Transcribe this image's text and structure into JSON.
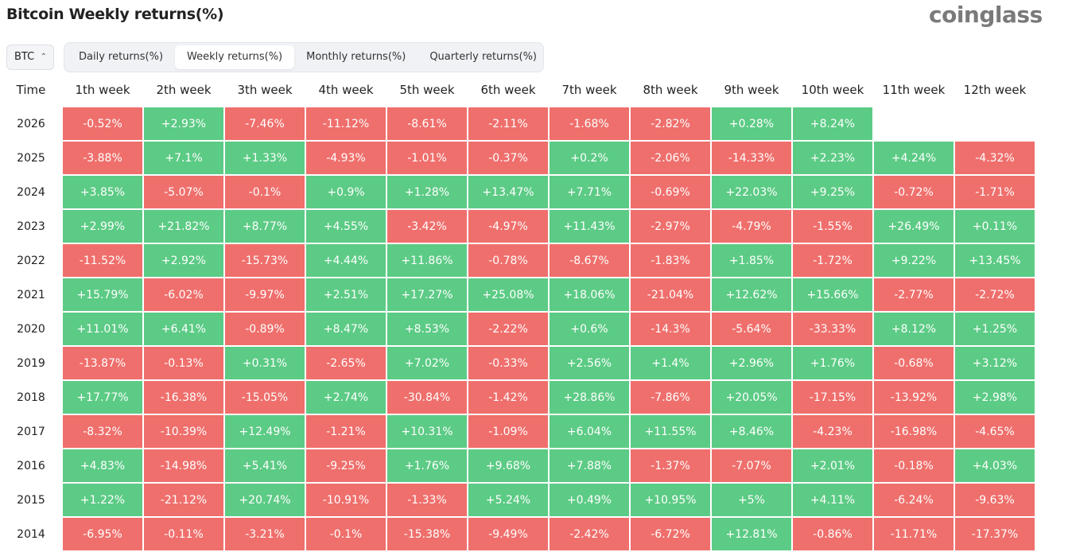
{
  "header": {
    "title": "Bitcoin Weekly returns(%)",
    "logo": "coinglass"
  },
  "selector": "BTC",
  "tabs": [
    "Daily returns(%)",
    "Weekly returns(%)",
    "Monthly returns(%)",
    "Quarterly returns(%)"
  ],
  "active_tab": 1,
  "table": {
    "columns": [
      "Time",
      "1th week",
      "2th week",
      "3th week",
      "4th week",
      "5th week",
      "6th week",
      "7th week",
      "8th week",
      "9th week",
      "10th week",
      "11th week",
      "12th week"
    ],
    "rows": [
      [
        "2026",
        "-0.52%",
        "+2.93%",
        "-7.46%",
        "-11.12%",
        "-8.61%",
        "-2.11%",
        "-1.68%",
        "-2.82%",
        "+0.28%",
        "+8.24%"
      ],
      [
        "2025",
        "-3.88%",
        "+7.1%",
        "+1.33%",
        "-4.93%",
        "-1.01%",
        "-0.37%",
        "+0.2%",
        "-2.06%",
        "-14.33%",
        "+2.23%",
        "+4.24%",
        "-4.32%"
      ],
      [
        "2024",
        "+3.85%",
        "-5.07%",
        "-0.1%",
        "+0.9%",
        "+1.28%",
        "+13.47%",
        "+7.71%",
        "-0.69%",
        "+22.03%",
        "+9.25%",
        "-0.72%",
        "-1.71%"
      ],
      [
        "2023",
        "+2.99%",
        "+21.82%",
        "+8.77%",
        "+4.55%",
        "-3.42%",
        "-4.97%",
        "+11.43%",
        "-2.97%",
        "-4.79%",
        "-1.55%",
        "+26.49%",
        "+0.11%"
      ],
      [
        "2022",
        "-11.52%",
        "+2.92%",
        "-15.73%",
        "+4.44%",
        "+11.86%",
        "-0.78%",
        "-8.67%",
        "-1.83%",
        "+1.85%",
        "-1.72%",
        "+9.22%",
        "+13.45%"
      ],
      [
        "2021",
        "+15.79%",
        "-6.02%",
        "-9.97%",
        "+2.51%",
        "+17.27%",
        "+25.08%",
        "+18.06%",
        "-21.04%",
        "+12.62%",
        "+15.66%",
        "-2.77%",
        "-2.72%"
      ],
      [
        "2020",
        "+11.01%",
        "+6.41%",
        "-0.89%",
        "+8.47%",
        "+8.53%",
        "-2.22%",
        "+0.6%",
        "-14.3%",
        "-5.64%",
        "-33.33%",
        "+8.12%",
        "+1.25%"
      ],
      [
        "2019",
        "-13.87%",
        "-0.13%",
        "+0.31%",
        "-2.65%",
        "+7.02%",
        "-0.33%",
        "+2.56%",
        "+1.4%",
        "+2.96%",
        "+1.76%",
        "-0.68%",
        "+3.12%"
      ],
      [
        "2018",
        "+17.77%",
        "-16.38%",
        "-15.05%",
        "+2.74%",
        "-30.84%",
        "-1.42%",
        "+28.86%",
        "-7.86%",
        "+20.05%",
        "-17.15%",
        "-13.92%",
        "+2.98%"
      ],
      [
        "2017",
        "-8.32%",
        "-10.39%",
        "+12.49%",
        "-1.21%",
        "+10.31%",
        "-1.09%",
        "+6.04%",
        "+11.55%",
        "+8.46%",
        "-4.23%",
        "-16.98%",
        "-4.65%"
      ],
      [
        "2016",
        "+4.83%",
        "-14.98%",
        "+5.41%",
        "-9.25%",
        "+1.76%",
        "+9.68%",
        "+7.88%",
        "-1.37%",
        "-7.07%",
        "+2.01%",
        "-0.18%",
        "+4.03%"
      ],
      [
        "2015",
        "+1.22%",
        "-21.12%",
        "+20.74%",
        "-10.91%",
        "-1.33%",
        "+5.24%",
        "+0.49%",
        "+10.95%",
        "+5%",
        "+4.11%",
        "-6.24%",
        "-9.63%"
      ],
      [
        "2014",
        "-6.95%",
        "-0.11%",
        "-3.21%",
        "-0.1%",
        "-15.38%",
        "-9.49%",
        "-2.42%",
        "-6.72%",
        "+12.81%",
        "-0.86%",
        "-11.71%",
        "-17.37%"
      ]
    ]
  }
}
